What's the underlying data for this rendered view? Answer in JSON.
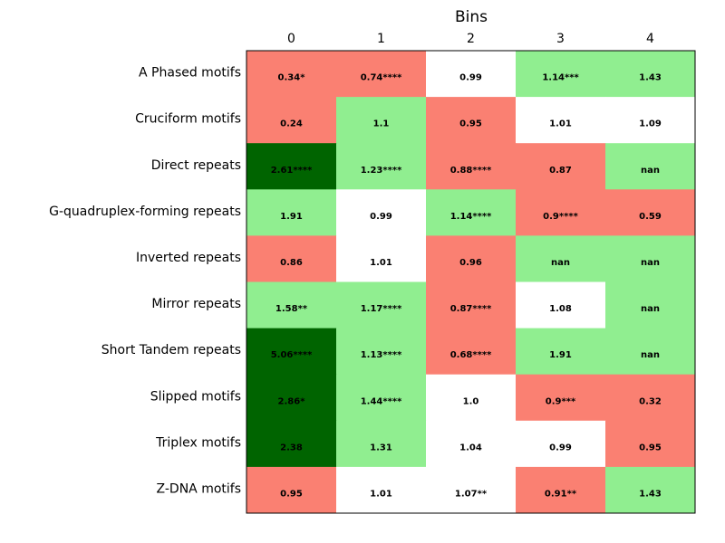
{
  "chart_data": {
    "type": "heatmap",
    "xlabel": "Bins",
    "x_axis_position": "top",
    "columns": [
      "0",
      "1",
      "2",
      "3",
      "4"
    ],
    "rows": [
      "A Phased motifs",
      "Cruciform motifs",
      "Direct repeats",
      "G-quadruplex-forming repeats",
      "Inverted repeats",
      "Mirror repeats",
      "Short Tandem repeats",
      "Slipped motifs",
      "Triplex motifs",
      "Z-DNA motifs"
    ],
    "cell_labels": [
      [
        "0.34*",
        "0.74****",
        "0.99",
        "1.14***",
        "1.43"
      ],
      [
        "0.24",
        "1.1",
        "0.95",
        "1.01",
        "1.09"
      ],
      [
        "2.61****",
        "1.23****",
        "0.88****",
        "0.87",
        "nan"
      ],
      [
        "1.91",
        "0.99",
        "1.14****",
        "0.9****",
        "0.59"
      ],
      [
        "0.86",
        "1.01",
        "0.96",
        "nan",
        "nan"
      ],
      [
        "1.58**",
        "1.17****",
        "0.87****",
        "1.08",
        "nan"
      ],
      [
        "5.06****",
        "1.13****",
        "0.68****",
        "1.91",
        "nan"
      ],
      [
        "2.86*",
        "1.44****",
        "1.0",
        "0.9***",
        "0.32"
      ],
      [
        "2.38",
        "1.31",
        "1.04",
        "0.99",
        "0.95"
      ],
      [
        "0.95",
        "1.01",
        "1.07**",
        "0.91**",
        "1.43"
      ]
    ],
    "cell_categories": [
      [
        "low",
        "low",
        "neutral",
        "high",
        "high"
      ],
      [
        "low",
        "high",
        "low",
        "neutral",
        "neutral"
      ],
      [
        "very_high",
        "high",
        "low",
        "low",
        "high"
      ],
      [
        "high",
        "neutral",
        "high",
        "low",
        "low"
      ],
      [
        "low",
        "neutral",
        "low",
        "high",
        "high"
      ],
      [
        "high",
        "high",
        "low",
        "neutral",
        "high"
      ],
      [
        "very_high",
        "high",
        "low",
        "high",
        "high"
      ],
      [
        "very_high",
        "high",
        "neutral",
        "low",
        "low"
      ],
      [
        "very_high",
        "high",
        "neutral",
        "neutral",
        "low"
      ],
      [
        "low",
        "neutral",
        "neutral",
        "low",
        "high"
      ]
    ],
    "colors": {
      "low": "#fa8072",
      "neutral": "#ffffff",
      "high": "#90ee90",
      "very_high": "#006400"
    },
    "grid": false,
    "legend": "none"
  }
}
